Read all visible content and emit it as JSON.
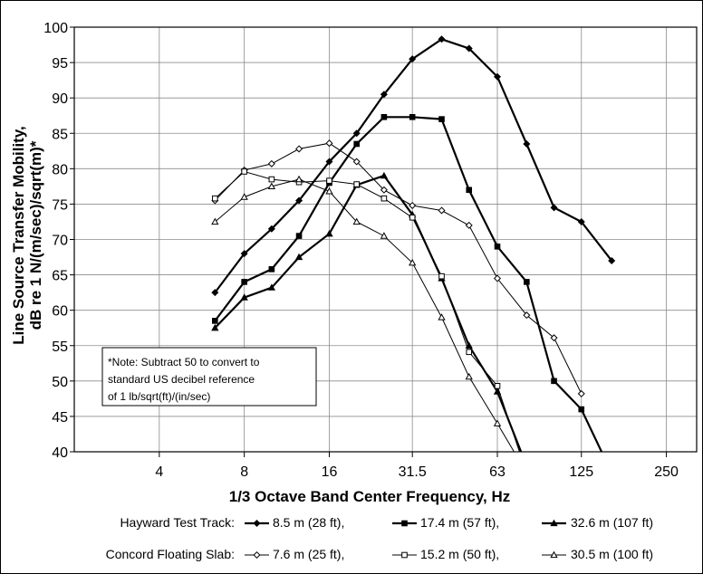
{
  "chart_data": {
    "type": "line",
    "xlabel": "1/3 Octave Band Center Frequency, Hz",
    "ylabel_line1": "Line Source Transfer Mobility,",
    "ylabel_line2": "dB re 1 N/(m/sec)/sqrt(m)*",
    "x_scale": "log",
    "x_ticks": [
      4,
      8,
      16,
      31.5,
      63,
      125,
      250
    ],
    "x_tick_labels": [
      "4",
      "8",
      "16",
      "31.5",
      "63",
      "125",
      "250"
    ],
    "xlim": [
      2,
      320
    ],
    "ylim": [
      40,
      100
    ],
    "y_ticks": [
      40,
      45,
      50,
      55,
      60,
      65,
      70,
      75,
      80,
      85,
      90,
      95,
      100
    ],
    "grid": true,
    "note_lines": [
      "*Note: Subtract 50 to convert to",
      "standard US decibel reference",
      "of 1 lb/sqrt(ft)/(in/sec)"
    ],
    "legend_groups": [
      {
        "label": "Hayward Test Track:",
        "entries": [
          "8.5 m (28 ft),",
          "17.4 m (57 ft),",
          "32.6 m (107 ft)"
        ]
      },
      {
        "label": "Concord Floating Slab:",
        "entries": [
          "7.6 m (25 ft),",
          "15.2 m (50 ft),",
          "30.5 m (100 ft)"
        ]
      }
    ],
    "series": [
      {
        "name": "Hayward Test Track: 8.5 m (28 ft)",
        "marker": "diamond-filled",
        "stroke": 2,
        "x": [
          6.3,
          8,
          10,
          12.5,
          16,
          20,
          25,
          31.5,
          40,
          50,
          63,
          80,
          100,
          125,
          160
        ],
        "y": [
          62.5,
          68,
          71.5,
          75.5,
          81,
          85,
          90.5,
          95.5,
          98.3,
          97,
          93,
          83.5,
          74.5,
          72.5,
          67
        ]
      },
      {
        "name": "Hayward Test Track: 17.4 m (57 ft)",
        "marker": "square-filled",
        "stroke": 2,
        "x": [
          6.3,
          8,
          10,
          12.5,
          16,
          20,
          25,
          31.5,
          40,
          50,
          63,
          80,
          100,
          125,
          160
        ],
        "y": [
          58.5,
          64,
          65.8,
          70.5,
          78,
          83.5,
          87.3,
          87.3,
          87,
          77,
          69,
          64,
          50,
          46,
          37
        ]
      },
      {
        "name": "Hayward Test Track: 32.6 m (107 ft)",
        "marker": "triangle-filled",
        "stroke": 2,
        "x": [
          6.3,
          8,
          10,
          12.5,
          16,
          20,
          25,
          31.5,
          40,
          50,
          63,
          80
        ],
        "y": [
          57.5,
          61.8,
          63.2,
          67.5,
          70.8,
          77.7,
          79,
          73.5,
          64.5,
          55,
          48.5,
          38
        ]
      },
      {
        "name": "Concord Floating Slab: 7.6 m (25 ft)",
        "marker": "diamond-open",
        "stroke": 1,
        "x": [
          6.3,
          8,
          10,
          12.5,
          16,
          20,
          25,
          31.5,
          40,
          50,
          63,
          80,
          100,
          125
        ],
        "y": [
          75.5,
          79.8,
          80.7,
          82.8,
          83.6,
          81,
          77,
          74.8,
          74.1,
          72,
          64.5,
          59.3,
          56.1,
          48.2
        ]
      },
      {
        "name": "Concord Floating Slab: 15.2 m (50 ft)",
        "marker": "square-open",
        "stroke": 1,
        "x": [
          6.3,
          8,
          10,
          12.5,
          16,
          20,
          25,
          31.5,
          40,
          50,
          63,
          80
        ],
        "y": [
          75.8,
          79.6,
          78.5,
          78.1,
          78.3,
          77.8,
          75.8,
          73.1,
          64.8,
          54.1,
          49.3,
          37
        ]
      },
      {
        "name": "Concord Floating Slab: 30.5 m (100 ft)",
        "marker": "triangle-open",
        "stroke": 1,
        "x": [
          6.3,
          8,
          10,
          12.5,
          16,
          20,
          25,
          31.5,
          40,
          50,
          63,
          80
        ],
        "y": [
          72.5,
          76,
          77.5,
          78.5,
          76.8,
          72.5,
          70.5,
          66.7,
          59,
          50.6,
          44,
          37
        ]
      }
    ]
  }
}
